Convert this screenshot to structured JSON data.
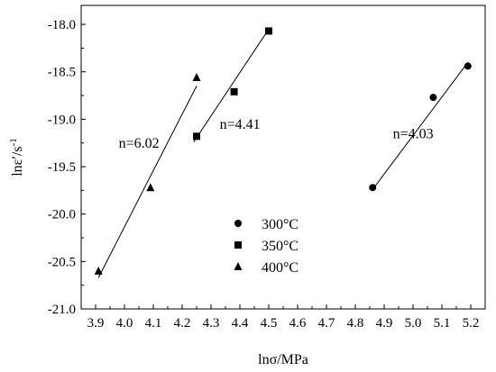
{
  "chart_data": {
    "type": "scatter",
    "xlabel": "lnσ/MPa",
    "ylabel": "lnε′/s⁻¹",
    "ylabel_main": "lnε′/s",
    "ylabel_sup": "-1",
    "xlim": [
      3.85,
      5.25
    ],
    "ylim": [
      -21.0,
      -17.8
    ],
    "xticks": [
      3.9,
      4.0,
      4.1,
      4.2,
      4.3,
      4.4,
      4.5,
      4.6,
      4.7,
      4.8,
      4.9,
      5.0,
      5.1,
      5.2
    ],
    "xtick_labels": [
      "3.9",
      "4.0",
      "4.1",
      "4.2",
      "4.3",
      "4.4",
      "4.5",
      "4.6",
      "4.7",
      "4.8",
      "4.9",
      "5.0",
      "5.1",
      "5.2"
    ],
    "yticks": [
      -21.0,
      -20.5,
      -20.0,
      -19.5,
      -19.0,
      -18.5,
      -18.0
    ],
    "ytick_labels": [
      "-21.0",
      "-20.5",
      "-20.0",
      "-19.5",
      "-19.0",
      "-18.5",
      "-18.0"
    ],
    "grid": false,
    "legend_position": "center-bottom",
    "series": [
      {
        "name": "300°C",
        "marker": "circle",
        "x": [
          4.86,
          5.07,
          5.19
        ],
        "y": [
          -19.72,
          -18.77,
          -18.44
        ],
        "fit": {
          "x": [
            4.87,
            5.19
          ],
          "y": [
            -19.7,
            -18.4
          ]
        },
        "annotation": "n=4.03",
        "annotation_at": [
          4.93,
          -19.2
        ]
      },
      {
        "name": "350°C",
        "marker": "square",
        "x": [
          4.25,
          4.38,
          4.5
        ],
        "y": [
          -19.18,
          -18.71,
          -18.07
        ],
        "fit": {
          "x": [
            4.24,
            4.5
          ],
          "y": [
            -19.24,
            -18.05
          ]
        },
        "annotation": "n=4.41",
        "annotation_at": [
          4.33,
          -19.1
        ]
      },
      {
        "name": "400°C",
        "marker": "triangle",
        "x": [
          3.91,
          4.09,
          4.25
        ],
        "y": [
          -20.6,
          -19.72,
          -18.56
        ],
        "fit": {
          "x": [
            3.91,
            4.25
          ],
          "y": [
            -20.67,
            -18.65
          ]
        },
        "annotation": "n=6.02",
        "annotation_at": [
          3.98,
          -19.3
        ]
      }
    ]
  }
}
